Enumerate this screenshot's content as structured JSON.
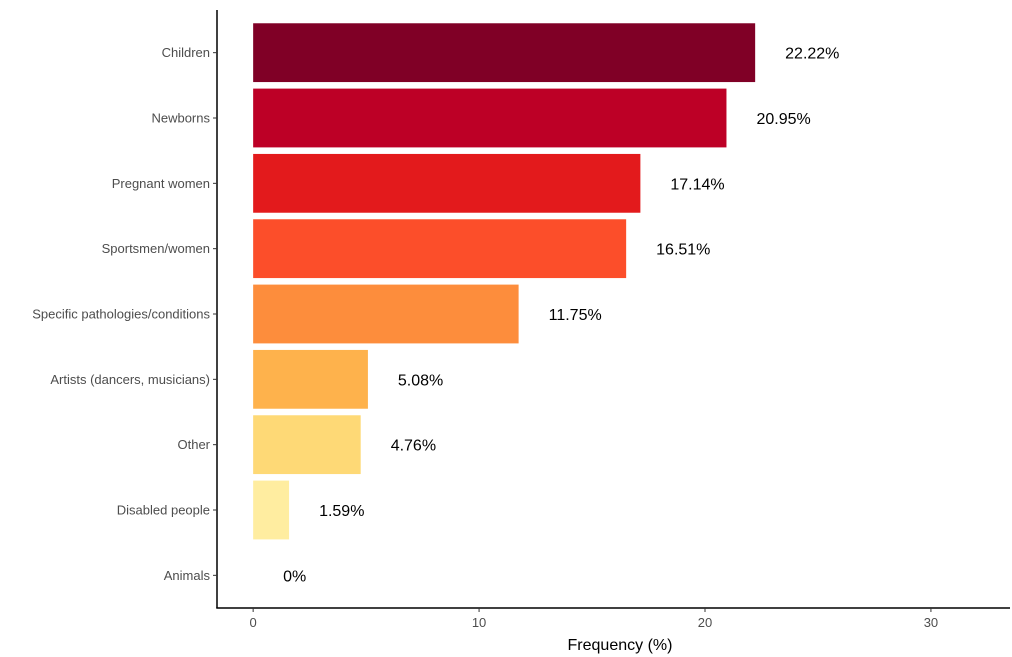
{
  "chart_data": {
    "type": "bar",
    "orientation": "horizontal",
    "categories": [
      "Children",
      "Newborns",
      "Pregnant women",
      "Sportsmen/women",
      "Specific pathologies/conditions",
      "Artists (dancers, musicians)",
      "Other",
      "Disabled people",
      "Animals"
    ],
    "values": [
      22.22,
      20.95,
      17.14,
      16.51,
      11.75,
      5.08,
      4.76,
      1.59,
      0
    ],
    "data_labels": [
      "22.22%",
      "20.95%",
      "17.14%",
      "16.51%",
      "11.75%",
      "5.08%",
      "4.76%",
      "1.59%",
      "0%"
    ],
    "colors": [
      "#800026",
      "#bd0026",
      "#e31a1c",
      "#fc4e2a",
      "#fd8d3c",
      "#feb24c",
      "#fed976",
      "#ffeda0",
      "#ffffcc"
    ],
    "xlabel": "Frequency (%)",
    "ylabel": "",
    "title": "",
    "xlim": [
      -1.6,
      33.5
    ],
    "xticks": [
      0,
      10,
      20,
      30
    ],
    "grid": false,
    "legend": "none"
  }
}
